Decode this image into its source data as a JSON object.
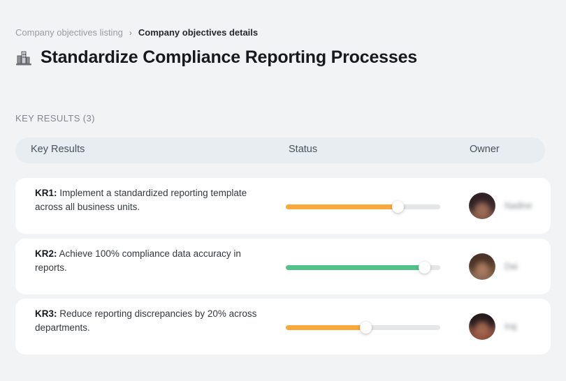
{
  "breadcrumb": {
    "separator": "›",
    "items": [
      {
        "label": "Company objectives listing"
      },
      {
        "label": "Company objectives details"
      }
    ]
  },
  "page": {
    "title": "Standardize Compliance Reporting Processes",
    "title_icon": "city-buildings-icon"
  },
  "section": {
    "label": "KEY RESULTS (3)"
  },
  "table": {
    "headers": {
      "key_results": "Key Results",
      "status": "Status",
      "owner": "Owner"
    },
    "rows": [
      {
        "kr_label": "KR1:",
        "text": "Implement a standardized reporting template across all business units.",
        "progress_percent": 73,
        "progress_color": "#FBA93D",
        "owner_name": "Nadine"
      },
      {
        "kr_label": "KR2:",
        "text": "Achieve 100% compliance data accuracy in reports.",
        "progress_percent": 90,
        "progress_color": "#52C18A",
        "owner_name": "Dai"
      },
      {
        "kr_label": "KR3:",
        "text": "Reduce reporting discrepancies by 20% across departments.",
        "progress_percent": 52,
        "progress_color": "#FBA93D",
        "owner_name": "Iraj"
      }
    ]
  },
  "colors": {
    "page_background": "#F2F3F5",
    "card_background": "#FFFFFF",
    "header_pill_background": "#E8EDF2",
    "track_background": "#E4E6E8",
    "orange_progress": "#FBA93D",
    "green_progress": "#52C18A"
  }
}
